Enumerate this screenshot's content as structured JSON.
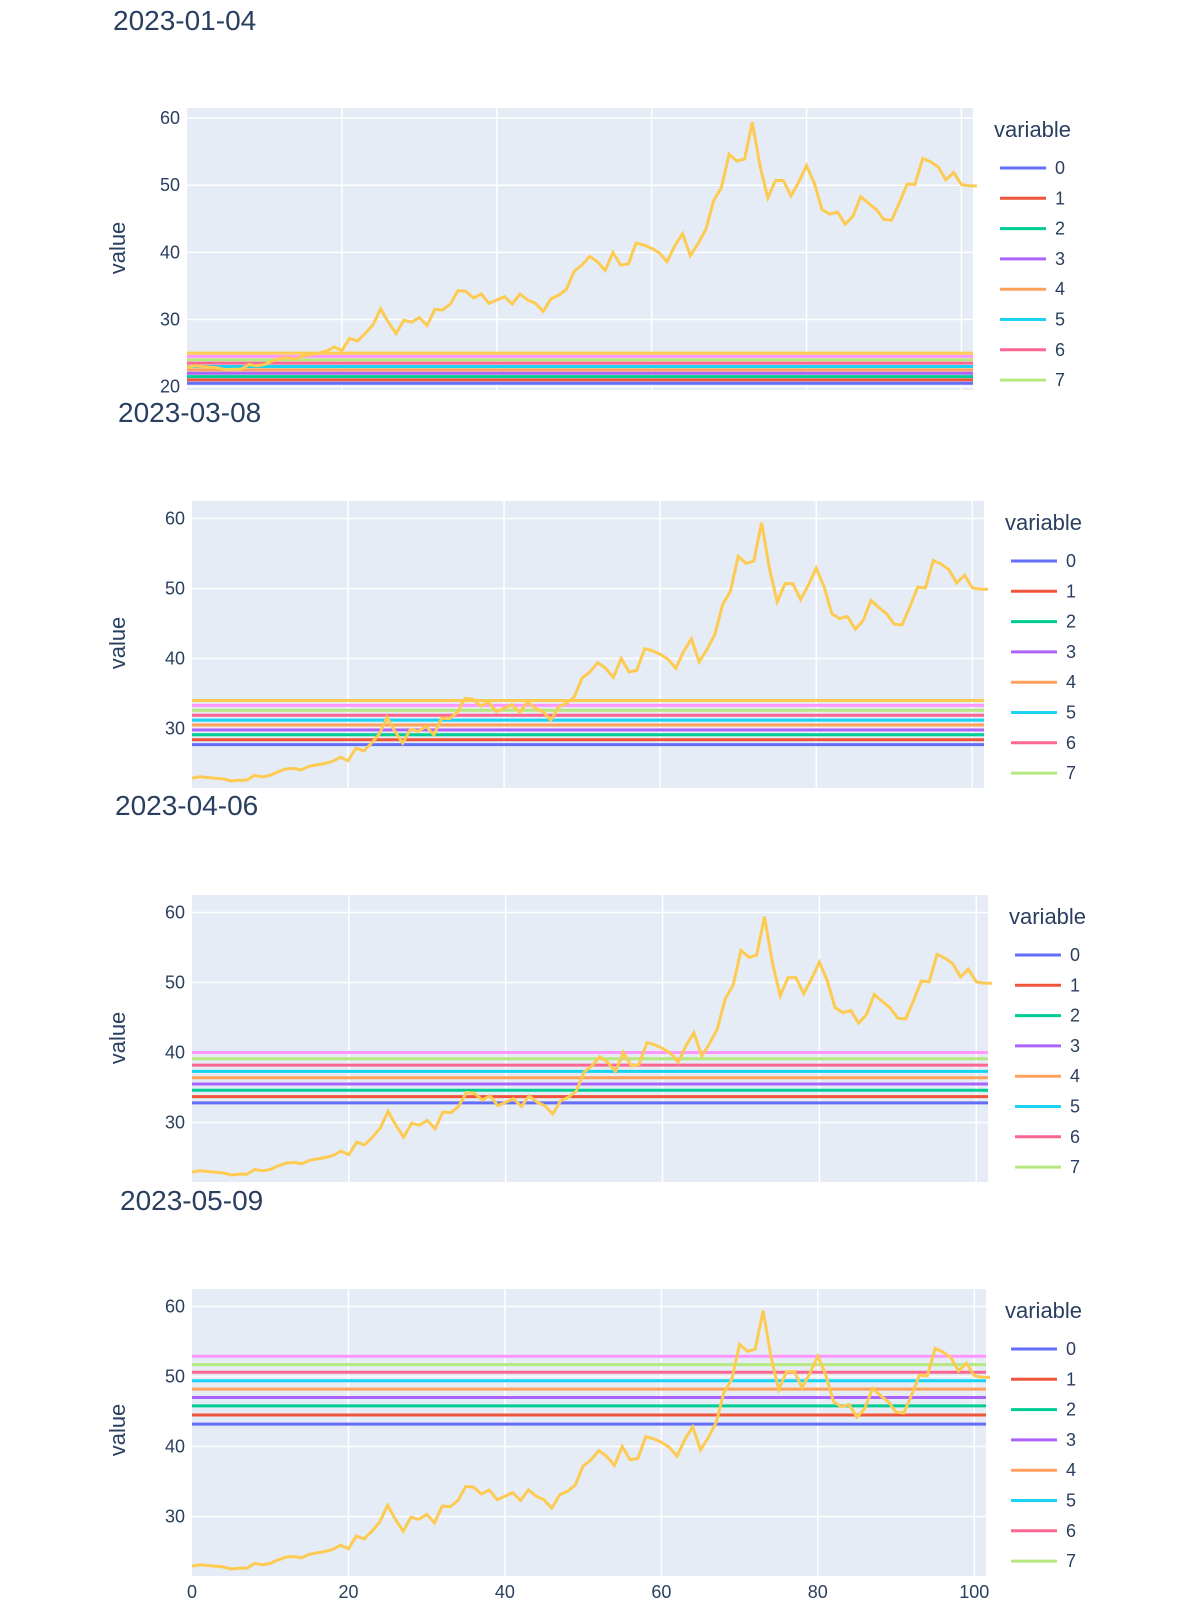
{
  "chart_data": [
    {
      "type": "line",
      "title": "2023-01-04",
      "xlabel": "",
      "ylabel": "value",
      "xlim": [
        0,
        101.5
      ],
      "ylim": [
        19.5,
        61.5
      ],
      "yticks": [
        20,
        30,
        40,
        50,
        60
      ],
      "grid": true,
      "legend": {
        "title": "variable",
        "placement": "right",
        "entries": [
          "0",
          "1",
          "2",
          "3",
          "4",
          "5",
          "6",
          "7"
        ]
      },
      "levels": [
        20.5,
        21.0,
        21.5,
        22.0,
        22.5,
        23.0,
        23.5,
        24.0,
        24.5,
        25.0
      ]
    },
    {
      "type": "line",
      "title": "2023-03-08",
      "xlabel": "",
      "ylabel": "value",
      "xlim": [
        0,
        101.5
      ],
      "ylim": [
        21.5,
        62.5
      ],
      "yticks": [
        30,
        40,
        50,
        60
      ],
      "grid": true,
      "legend": {
        "title": "variable",
        "placement": "right",
        "entries": [
          "0",
          "1",
          "2",
          "3",
          "4",
          "5",
          "6",
          "7"
        ]
      },
      "levels": [
        27.7,
        28.4,
        29.1,
        29.8,
        30.5,
        31.2,
        31.9,
        32.6,
        33.3,
        34.0
      ]
    },
    {
      "type": "line",
      "title": "2023-04-06",
      "xlabel": "",
      "ylabel": "value",
      "xlim": [
        0,
        101.5
      ],
      "ylim": [
        21.5,
        62.5
      ],
      "yticks": [
        30,
        40,
        50,
        60
      ],
      "grid": true,
      "legend": {
        "title": "variable",
        "placement": "right",
        "entries": [
          "0",
          "1",
          "2",
          "3",
          "4",
          "5",
          "6",
          "7"
        ]
      },
      "levels": [
        32.8,
        33.7,
        34.6,
        35.5,
        36.4,
        37.3,
        38.2,
        39.1,
        40.0
      ]
    },
    {
      "type": "line",
      "title": "2023-05-09",
      "xlabel": "",
      "ylabel": "value",
      "xlim": [
        0,
        101.5
      ],
      "ylim": [
        21.5,
        62.5
      ],
      "yticks": [
        30,
        40,
        50,
        60
      ],
      "xticks": [
        0,
        20,
        40,
        60,
        80,
        100
      ],
      "grid": true,
      "legend": {
        "title": "variable",
        "placement": "right",
        "entries": [
          "0",
          "1",
          "2",
          "3",
          "4",
          "5",
          "6",
          "7"
        ]
      },
      "levels": [
        43.2,
        44.5,
        45.8,
        47.0,
        48.2,
        49.4,
        50.6,
        51.7,
        52.9
      ]
    }
  ],
  "colors": {
    "levels": [
      "#636efa",
      "#ef553b",
      "#00cc96",
      "#ab63fa",
      "#ffa15a",
      "#19d3f3",
      "#ff6692",
      "#b6e880",
      "#ff97ff",
      "#fecb52"
    ],
    "series": "#fecb52",
    "plot_bg": "#e5ecf6",
    "text": "#2a3f5f"
  },
  "series_values": [
    22.9,
    23.1,
    23.0,
    22.9,
    22.8,
    22.5,
    22.6,
    22.6,
    23.3,
    23.1,
    23.3,
    23.8,
    24.2,
    24.3,
    24.1,
    24.6,
    24.8,
    25.0,
    25.3,
    25.9,
    25.4,
    27.2,
    26.8,
    27.9,
    29.2,
    31.6,
    29.6,
    27.9,
    29.9,
    29.6,
    30.3,
    29.1,
    31.5,
    31.4,
    32.3,
    34.3,
    34.2,
    33.2,
    33.8,
    32.4,
    32.9,
    33.4,
    32.3,
    33.8,
    32.9,
    32.4,
    31.2,
    33.1,
    33.6,
    34.5,
    37.2,
    38.1,
    39.4,
    38.6,
    37.3,
    40.0,
    38.1,
    38.3,
    41.4,
    41.1,
    40.6,
    39.9,
    38.6,
    41.0,
    42.8,
    39.5,
    41.3,
    43.4,
    47.7,
    49.6,
    54.6,
    53.6,
    53.9,
    59.4,
    52.9,
    48.1,
    50.7,
    50.7,
    48.4,
    50.5,
    52.9,
    50.3,
    46.4,
    45.7,
    46.0,
    44.2,
    45.4,
    48.3,
    47.3,
    46.4,
    44.9,
    44.8,
    47.4,
    50.2,
    50.1,
    54.0,
    53.5,
    52.7,
    50.8,
    51.9,
    50.1,
    49.9,
    49.9
  ]
}
